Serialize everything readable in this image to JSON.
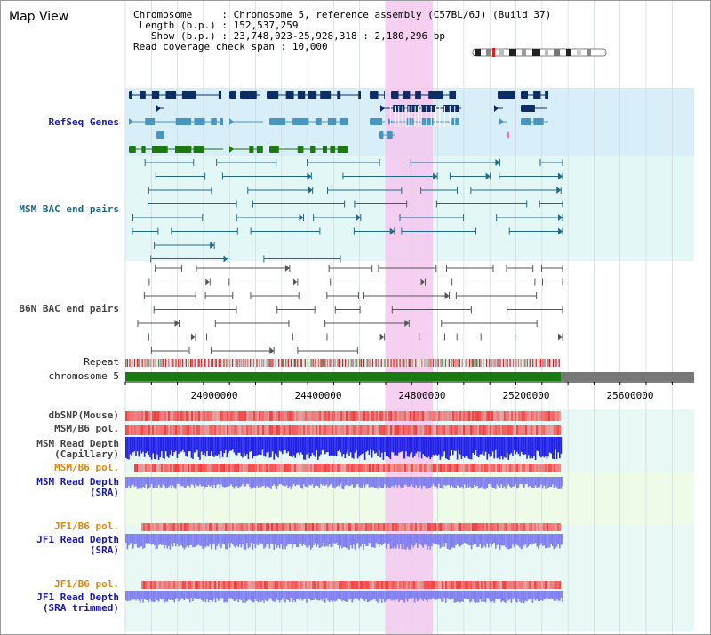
{
  "map_title": "Map View",
  "info": {
    "chromosome_label": "Chromosome    ",
    "chromosome_value": "Chromosome 5, reference assembly (C57BL/6J) (Build 37)",
    "length_label": " Length (b.p.)",
    "length_value": "152,537,259",
    "show_label": "   Show (b.p.)",
    "show_value": "23,748,023-25,928,318 : 2,180,296 bp",
    "coverage_label": "Read coverage check span",
    "coverage_value": "10,000"
  },
  "tracks": {
    "refseq": "RefSeq Genes",
    "msm_bac": "MSM BAC end pairs",
    "b6n_bac": "B6N BAC end pairs",
    "repeat": "Repeat",
    "chromosome": "chromosome 5",
    "dbsnp": "dbSNP(Mouse)",
    "msm_b6_pol": "MSM/B6 pol.",
    "msm_read_depth_cap": "MSM Read Depth\n(Capillary)",
    "msm_b6_pol2": "MSM/B6 pol.",
    "msm_read_depth_sra": "MSM Read Depth\n(SRA)",
    "jf1_b6_pol": "JF1/B6 pol.",
    "jf1_read_depth_sra": "JF1 Read Depth\n(SRA)",
    "jf1_b6_pol2": "JF1/B6 pol.",
    "jf1_read_depth_trim": "JF1 Read Depth\n(SRA trimmed)"
  },
  "axis_ticks": [
    "24000000",
    "24400000",
    "24800000",
    "25200000",
    "25600000"
  ],
  "colors": {
    "refseq_dark": "#0d2d66",
    "refseq_light": "#4a95c0",
    "refseq_green": "#1d7a12",
    "highlight": "#f5c8ef",
    "chromosome_bar": "#1a7a12",
    "read_depth_blue": "#2323e8",
    "read_depth_light": "#8080f0"
  }
}
